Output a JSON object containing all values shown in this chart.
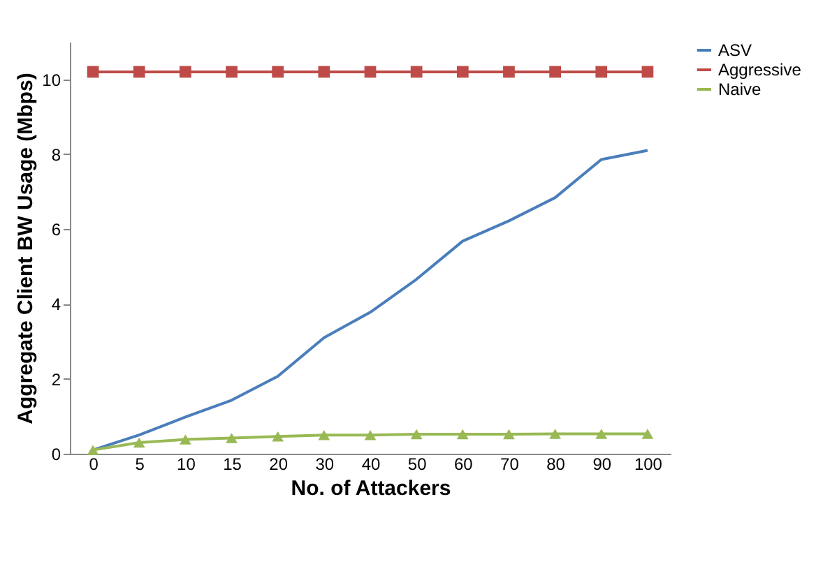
{
  "chart_data": {
    "type": "line",
    "xlabel": "No. of Attackers",
    "ylabel": "Aggregate Client BW Usage (Mbps)",
    "categories": [
      "0",
      "5",
      "10",
      "15",
      "20",
      "30",
      "40",
      "50",
      "60",
      "70",
      "80",
      "90",
      "100"
    ],
    "ylim": [
      0,
      11
    ],
    "yticks": [
      0,
      2,
      4,
      6,
      8,
      10
    ],
    "grid": false,
    "legend": "right",
    "line_style": "solid",
    "series": [
      {
        "name": "ASV",
        "color": "#4a7ebb",
        "marker": "none",
        "values": [
          0.1,
          0.5,
          0.98,
          1.43,
          2.07,
          3.1,
          3.78,
          4.66,
          5.68,
          6.22,
          6.84,
          7.86,
          8.1
        ]
      },
      {
        "name": "Aggressive",
        "color": "#be4b48",
        "marker": "square",
        "values": [
          10.2,
          10.2,
          10.2,
          10.2,
          10.2,
          10.2,
          10.2,
          10.2,
          10.2,
          10.2,
          10.2,
          10.2,
          10.2
        ]
      },
      {
        "name": "Naive",
        "color": "#98b954",
        "marker": "triangle",
        "values": [
          0.1,
          0.3,
          0.38,
          0.42,
          0.46,
          0.5,
          0.5,
          0.52,
          0.52,
          0.52,
          0.53,
          0.53,
          0.53
        ]
      }
    ]
  }
}
